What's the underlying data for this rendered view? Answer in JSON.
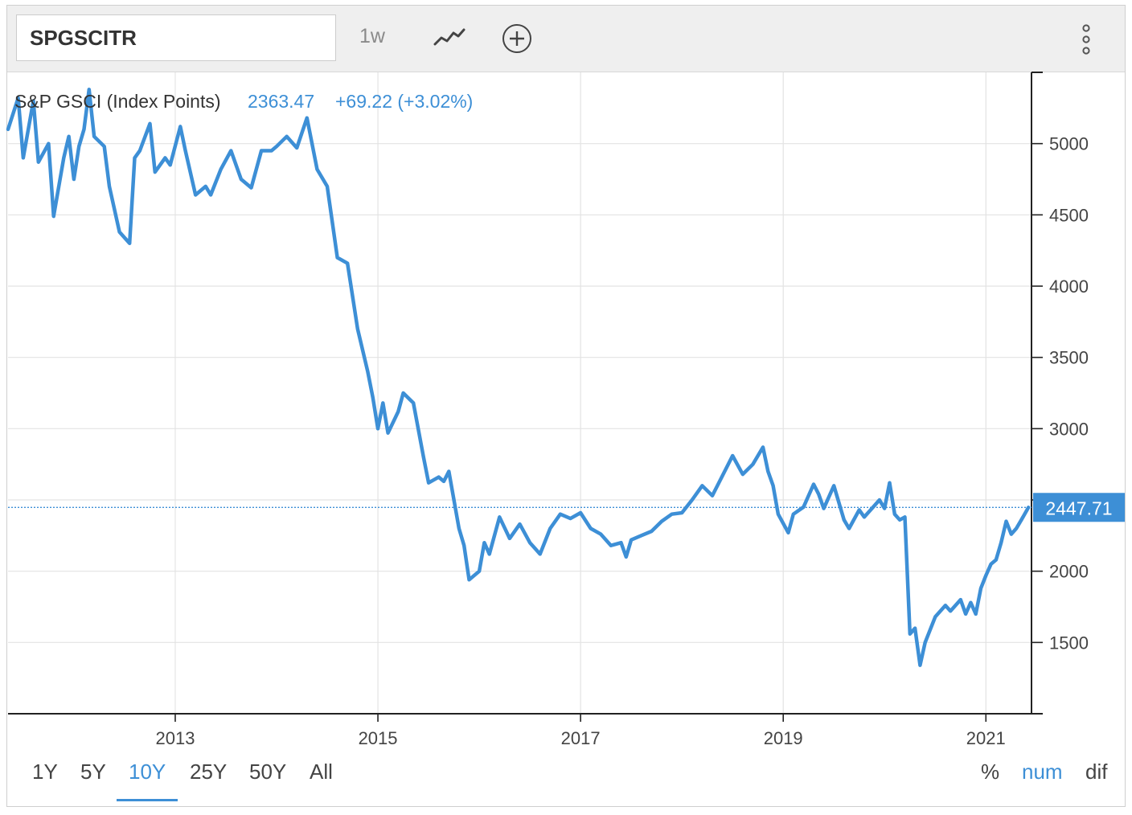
{
  "toolbar": {
    "symbol": "SPGSCITR",
    "interval": "1w",
    "trend_icon": "line-chart-icon",
    "add_icon": "plus-circle-icon",
    "more_icon": "kebab-menu-icon"
  },
  "legend": {
    "name": "S&P GSCI (Index Points)",
    "value": "2363.47",
    "change": "+69.22 (+3.02%)"
  },
  "last_value_label": "2447.71",
  "range_buttons": [
    "1Y",
    "5Y",
    "10Y",
    "25Y",
    "50Y",
    "All"
  ],
  "active_range": "10Y",
  "mode_buttons": [
    "%",
    "num",
    "dif"
  ],
  "active_mode": "num",
  "colors": {
    "line": "#3d8fd6",
    "active": "#3d8fd6",
    "grid": "#e3e3e3",
    "axis": "#222222"
  },
  "chart_data": {
    "type": "line",
    "title": "",
    "xlabel": "",
    "ylabel": "",
    "ylim": [
      1000,
      5500
    ],
    "xlim": [
      2011.35,
      2021.45
    ],
    "x_ticks": [
      "2013",
      "2015",
      "2017",
      "2019",
      "2021"
    ],
    "y_ticks": [
      1500,
      2000,
      2500,
      3000,
      3500,
      4000,
      4500,
      5000
    ],
    "grid": true,
    "series": [
      {
        "name": "S&P GSCI (Index Points)",
        "x": [
          2011.35,
          2011.45,
          2011.5,
          2011.6,
          2011.65,
          2011.75,
          2011.8,
          2011.9,
          2011.95,
          2012.0,
          2012.05,
          2012.1,
          2012.15,
          2012.2,
          2012.3,
          2012.35,
          2012.45,
          2012.55,
          2012.6,
          2012.65,
          2012.75,
          2012.8,
          2012.9,
          2012.95,
          2013.05,
          2013.1,
          2013.2,
          2013.3,
          2013.35,
          2013.45,
          2013.55,
          2013.65,
          2013.75,
          2013.85,
          2013.95,
          2014.0,
          2014.1,
          2014.2,
          2014.3,
          2014.4,
          2014.5,
          2014.6,
          2014.7,
          2014.8,
          2014.9,
          2014.95,
          2015.0,
          2015.05,
          2015.1,
          2015.2,
          2015.25,
          2015.35,
          2015.45,
          2015.5,
          2015.6,
          2015.65,
          2015.7,
          2015.8,
          2015.85,
          2015.9,
          2016.0,
          2016.05,
          2016.1,
          2016.2,
          2016.3,
          2016.4,
          2016.5,
          2016.55,
          2016.6,
          2016.7,
          2016.8,
          2016.9,
          2017.0,
          2017.1,
          2017.2,
          2017.3,
          2017.4,
          2017.45,
          2017.5,
          2017.6,
          2017.7,
          2017.8,
          2017.9,
          2018.0,
          2018.1,
          2018.2,
          2018.3,
          2018.4,
          2018.5,
          2018.6,
          2018.7,
          2018.8,
          2018.85,
          2018.9,
          2018.95,
          2019.05,
          2019.1,
          2019.2,
          2019.3,
          2019.35,
          2019.4,
          2019.5,
          2019.6,
          2019.65,
          2019.75,
          2019.8,
          2019.9,
          2019.95,
          2020.0,
          2020.05,
          2020.1,
          2020.15,
          2020.2,
          2020.25,
          2020.3,
          2020.35,
          2020.4,
          2020.5,
          2020.6,
          2020.65,
          2020.75,
          2020.8,
          2020.85,
          2020.9,
          2020.95,
          2021.0,
          2021.05,
          2021.1,
          2021.15,
          2021.2,
          2021.25,
          2021.3,
          2021.35,
          2021.42
        ],
        "y": [
          5100,
          5320,
          4900,
          5300,
          4870,
          5000,
          4490,
          4900,
          5050,
          4750,
          4980,
          5100,
          5380,
          5050,
          4980,
          4700,
          4380,
          4300,
          4900,
          4950,
          5140,
          4800,
          4900,
          4850,
          5120,
          4950,
          4640,
          4700,
          4640,
          4820,
          4950,
          4750,
          4690,
          4950,
          4950,
          4980,
          5050,
          4970,
          5180,
          4820,
          4700,
          4200,
          4160,
          3700,
          3400,
          3220,
          3000,
          3180,
          2970,
          3120,
          3250,
          3180,
          2800,
          2620,
          2660,
          2630,
          2700,
          2300,
          2180,
          1940,
          2000,
          2200,
          2120,
          2380,
          2230,
          2330,
          2200,
          2160,
          2120,
          2300,
          2400,
          2370,
          2410,
          2300,
          2260,
          2180,
          2200,
          2100,
          2220,
          2250,
          2280,
          2350,
          2400,
          2410,
          2500,
          2600,
          2530,
          2670,
          2810,
          2680,
          2750,
          2870,
          2700,
          2600,
          2400,
          2270,
          2400,
          2450,
          2610,
          2540,
          2440,
          2600,
          2360,
          2300,
          2430,
          2380,
          2460,
          2500,
          2440,
          2620,
          2400,
          2360,
          2380,
          1560,
          1600,
          1340,
          1500,
          1680,
          1760,
          1720,
          1800,
          1700,
          1780,
          1700,
          1880,
          1970,
          2050,
          2080,
          2200,
          2350,
          2260,
          2300,
          2360,
          2447.71
        ]
      }
    ]
  }
}
